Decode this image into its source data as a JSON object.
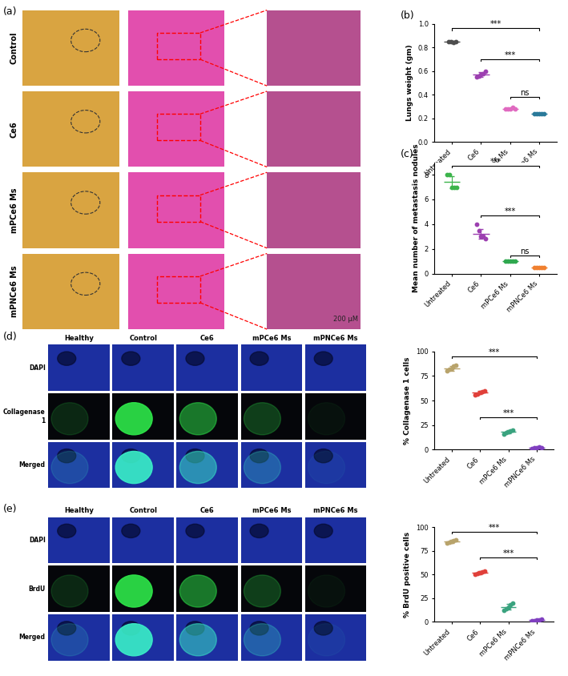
{
  "chart_data": [
    {
      "type": "scatter",
      "panel": "(b)",
      "y_label": "Lungs weight (gm)",
      "categories": [
        "Untreated",
        "Ce6",
        "mPCe6 Ms",
        "mPNCe6 Ms"
      ],
      "colors": [
        "#4d4d4d",
        "#9c3fb0",
        "#e06ac0",
        "#2a7a9a"
      ],
      "points": [
        [
          0.85,
          0.85,
          0.84,
          0.85
        ],
        [
          0.55,
          0.56,
          0.57,
          0.58,
          0.6
        ],
        [
          0.28,
          0.28,
          0.28,
          0.29,
          0.28
        ],
        [
          0.24,
          0.24,
          0.24,
          0.24,
          0.24
        ]
      ],
      "means": [
        0.85,
        0.57,
        0.28,
        0.24
      ],
      "errors": [
        0.005,
        0.02,
        0.005,
        0.005
      ],
      "ylim": [
        0,
        1.0
      ],
      "yticks": [
        {
          "value": 0,
          "label": "0.0"
        },
        {
          "value": 0.2,
          "label": "0.2"
        },
        {
          "value": 0.4,
          "label": "0.4"
        },
        {
          "value": 0.6,
          "label": "0.6"
        },
        {
          "value": 0.8,
          "label": "0.8"
        },
        {
          "value": 1.0,
          "label": "1.0"
        }
      ],
      "significance": [
        {
          "from": 0,
          "to": 3,
          "y": 0.96,
          "label": "***"
        },
        {
          "from": 1,
          "to": 3,
          "y": 0.7,
          "label": "***"
        },
        {
          "from": 2,
          "to": 3,
          "y": 0.38,
          "label": "ns"
        }
      ]
    },
    {
      "type": "scatter",
      "panel": "(c)",
      "y_label": "Mean number of metastasis nodules",
      "categories": [
        "Untreated",
        "Ce6",
        "mPCe6 Ms",
        "mPNCe6 Ms"
      ],
      "colors": [
        "#3cb44b",
        "#9c3fb0",
        "#2fa84f",
        "#f08030"
      ],
      "points": [
        [
          8,
          8,
          7,
          7,
          7
        ],
        [
          4,
          3.5,
          3,
          3,
          2.8
        ],
        [
          1,
          1,
          1,
          1,
          1
        ],
        [
          0.5,
          0.5,
          0.5,
          0.5,
          0.5
        ]
      ],
      "means": [
        7.4,
        3.2,
        1,
        0.5
      ],
      "errors": [
        0.5,
        0.4,
        0.02,
        0.02
      ],
      "ylim": [
        0,
        9
      ],
      "yticks": [
        0,
        2,
        4,
        6,
        8
      ],
      "significance": [
        {
          "from": 0,
          "to": 3,
          "y": 8.7,
          "label": "***"
        },
        {
          "from": 1,
          "to": 3,
          "y": 4.7,
          "label": "***"
        },
        {
          "from": 2,
          "to": 3,
          "y": 1.5,
          "label": "ns"
        }
      ]
    },
    {
      "type": "scatter",
      "y_label": "% Collagenase 1 cells",
      "categories": [
        "Untreated",
        "Ce6",
        "mPCe6 Ms",
        "mPNCe6 Ms"
      ],
      "colors": [
        "#b8a36b",
        "#e0403a",
        "#3aa37f",
        "#8040c0"
      ],
      "points": [
        [
          80,
          82,
          83,
          85,
          86
        ],
        [
          56,
          57,
          58,
          59,
          60
        ],
        [
          16,
          17,
          18,
          19,
          20
        ],
        [
          1,
          2,
          2,
          3,
          2
        ]
      ],
      "means": [
        83,
        58,
        18,
        2
      ],
      "errors": [
        2.5,
        1.5,
        1.5,
        0.7
      ],
      "ylim": [
        0,
        100
      ],
      "yticks": [
        0,
        25,
        50,
        75,
        100
      ],
      "significance": [
        {
          "from": 0,
          "to": 3,
          "y": 95,
          "label": "***"
        },
        {
          "from": 1,
          "to": 3,
          "y": 33,
          "label": "***"
        }
      ]
    },
    {
      "type": "scatter",
      "y_label": "% BrdU positive cells",
      "categories": [
        "Untreated",
        "Ce6",
        "mPCe6 Ms",
        "mPNCe6 Ms"
      ],
      "colors": [
        "#b8a36b",
        "#e0403a",
        "#3aa37f",
        "#8040c0"
      ],
      "points": [
        [
          83,
          84,
          85,
          86,
          87
        ],
        [
          50,
          51,
          52,
          53,
          54
        ],
        [
          12,
          14,
          16,
          18,
          20
        ],
        [
          1,
          1,
          2,
          2,
          3
        ]
      ],
      "means": [
        85,
        52,
        16,
        2
      ],
      "errors": [
        1.5,
        1.5,
        3,
        0.8
      ],
      "ylim": [
        0,
        100
      ],
      "yticks": [
        0,
        25,
        50,
        75,
        100
      ],
      "significance": [
        {
          "from": 0,
          "to": 3,
          "y": 95,
          "label": "***"
        },
        {
          "from": 1,
          "to": 3,
          "y": 68,
          "label": "***"
        }
      ]
    }
  ],
  "image_panels": {
    "a": {
      "panel": "(a)",
      "rows": [
        "Control",
        "Ce6",
        "mPCe6 Ms",
        "mPNCe6 Ms"
      ],
      "scale_bar": "200 µM"
    },
    "d": {
      "panel": "(d)",
      "columns": [
        "Healthy",
        "Control",
        "Ce6",
        "mPCe6 Ms",
        "mPNCe6 Ms"
      ],
      "rows": [
        "DAPI",
        "Collagenase 1",
        "Merged"
      ]
    },
    "e": {
      "panel": "(e)",
      "columns": [
        "Healthy",
        "Control",
        "Ce6",
        "mPCe6 Ms",
        "mPNCe6 Ms"
      ],
      "rows": [
        "DAPI",
        "BrdU",
        "Merged"
      ]
    }
  }
}
